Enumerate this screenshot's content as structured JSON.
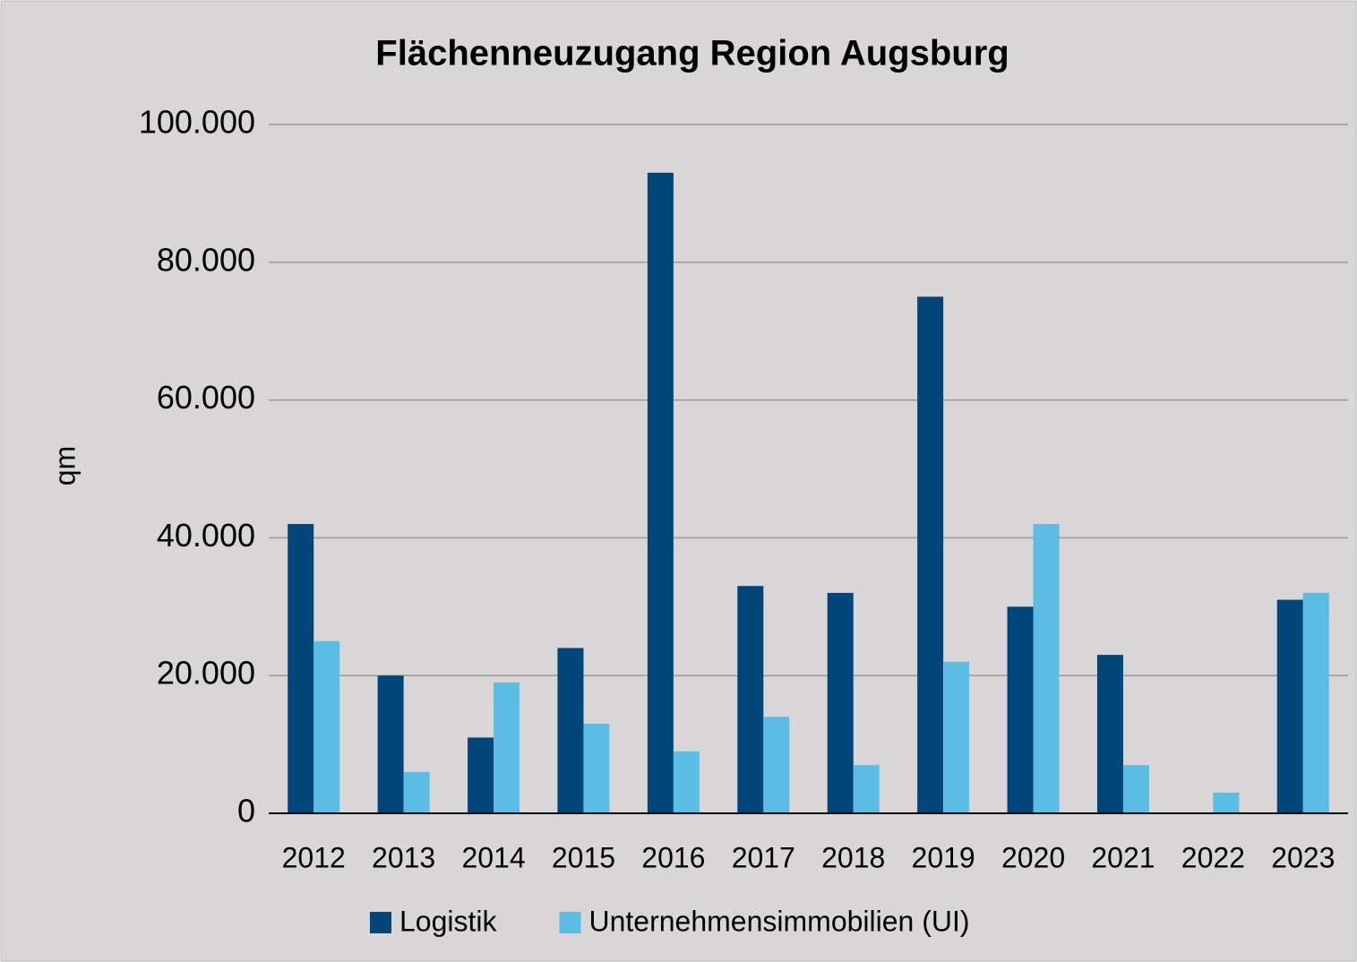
{
  "chart_data": {
    "type": "bar",
    "title": "Flächenneuzugang Region Augsburg",
    "y_label": "qm",
    "categories": [
      "2012",
      "2013",
      "2014",
      "2015",
      "2016",
      "2017",
      "2018",
      "2019",
      "2020",
      "2021",
      "2022",
      "2023"
    ],
    "series": [
      {
        "name": "Logistik",
        "color": "#00467a",
        "values": [
          42000,
          20000,
          11000,
          24000,
          93000,
          33000,
          32000,
          75000,
          30000,
          23000,
          0,
          31000
        ]
      },
      {
        "name": "Unternehmensimmobilien (UI)",
        "color": "#5bbde4",
        "values": [
          25000,
          6000,
          19000,
          13000,
          9000,
          14000,
          7000,
          22000,
          42000,
          7000,
          3000,
          32000
        ]
      }
    ],
    "ylim": [
      0,
      100000
    ],
    "yticks": [
      0,
      {
        "value": 20000,
        "label": "20.000"
      },
      {
        "value": 40000,
        "label": "40.000"
      },
      {
        "value": 60000,
        "label": "60.000"
      },
      {
        "value": 80000,
        "label": "80.000"
      },
      {
        "value": 100000,
        "label": "100.000"
      }
    ],
    "grid": true,
    "legend": "bottom"
  }
}
